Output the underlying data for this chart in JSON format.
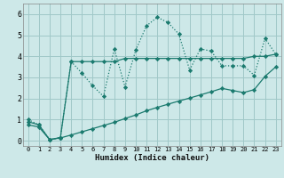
{
  "xlabel": "Humidex (Indice chaleur)",
  "background_color": "#cde8e8",
  "grid_color": "#a0c8c8",
  "line_color": "#1a7a6e",
  "x_ticks": [
    0,
    1,
    2,
    3,
    4,
    5,
    6,
    7,
    8,
    9,
    10,
    11,
    12,
    13,
    14,
    15,
    16,
    17,
    18,
    19,
    20,
    21,
    22,
    23
  ],
  "y_ticks": [
    0,
    1,
    2,
    3,
    4,
    5,
    6
  ],
  "ylim": [
    -0.25,
    6.5
  ],
  "xlim": [
    -0.5,
    23.5
  ],
  "series1_x": [
    0,
    1,
    2,
    3,
    4,
    5,
    6,
    7,
    8,
    9,
    10,
    11,
    12,
    13,
    14,
    15,
    16,
    17,
    18,
    19,
    20,
    21,
    22,
    23
  ],
  "series1_y": [
    1.0,
    0.75,
    0.05,
    0.15,
    3.75,
    3.2,
    2.6,
    2.1,
    4.35,
    2.55,
    4.3,
    5.45,
    5.85,
    5.6,
    5.05,
    3.35,
    4.35,
    4.25,
    3.55,
    3.55,
    3.55,
    3.1,
    4.85,
    4.1
  ],
  "series2_x": [
    0,
    1,
    2,
    3,
    4,
    5,
    6,
    7,
    8,
    9,
    10,
    11,
    12,
    13,
    14,
    15,
    16,
    17,
    18,
    19,
    20,
    21,
    22,
    23
  ],
  "series2_y": [
    0.9,
    0.75,
    0.05,
    0.15,
    3.75,
    3.75,
    3.75,
    3.75,
    3.75,
    3.9,
    3.9,
    3.9,
    3.9,
    3.9,
    3.9,
    3.9,
    3.9,
    3.9,
    3.9,
    3.9,
    3.9,
    4.0,
    4.0,
    4.1
  ],
  "series3_x": [
    0,
    1,
    2,
    3,
    4,
    5,
    6,
    7,
    8,
    9,
    10,
    11,
    12,
    13,
    14,
    15,
    16,
    17,
    18,
    19,
    20,
    21,
    22,
    23
  ],
  "series3_y": [
    0.75,
    0.65,
    0.05,
    0.13,
    0.27,
    0.42,
    0.57,
    0.72,
    0.87,
    1.05,
    1.22,
    1.42,
    1.58,
    1.73,
    1.88,
    2.02,
    2.17,
    2.32,
    2.48,
    2.38,
    2.28,
    2.42,
    3.05,
    3.5
  ]
}
